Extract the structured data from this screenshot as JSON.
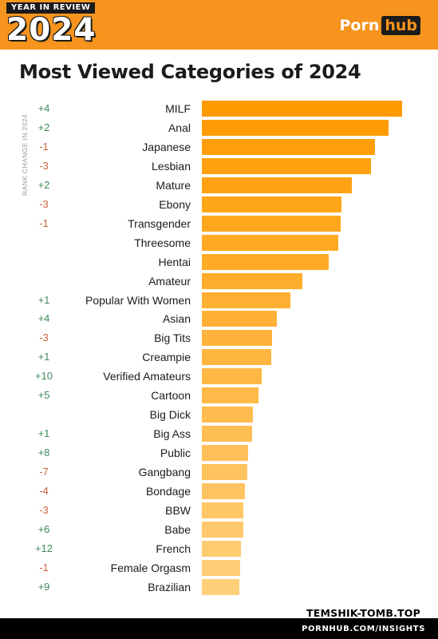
{
  "header": {
    "badge_top": "YEAR IN REVIEW",
    "badge_year": "2024",
    "logo_left": "Porn",
    "logo_right": "hub"
  },
  "footer": {
    "watermark": "TEMSHIK-TOMB.TOP",
    "url": "PORNHUB.COM/INSIGHTS"
  },
  "colors": {
    "brand_orange": "#f7941d",
    "bar_top": "#ff9a00",
    "bar_bottom": "#ffcf7a",
    "positive": "#3f8a5a",
    "negative": "#c9603b"
  },
  "chart_data": {
    "type": "bar",
    "orientation": "horizontal",
    "title": "Most Viewed Categories of 2024",
    "rank_change_label": "RANK CHANGE IN 2024",
    "categories": [
      "MILF",
      "Anal",
      "Japanese",
      "Lesbian",
      "Mature",
      "Ebony",
      "Transgender",
      "Threesome",
      "Hentai",
      "Amateur",
      "Popular With Women",
      "Asian",
      "Big Tits",
      "Creampie",
      "Verified Amateurs",
      "Cartoon",
      "Big Dick",
      "Big Ass",
      "Public",
      "Gangbang",
      "Bondage",
      "BBW",
      "Babe",
      "French",
      "Female Orgasm",
      "Brazilian"
    ],
    "rank_change": [
      "+4",
      "+2",
      "-1",
      "-3",
      "+2",
      "-3",
      "-1",
      "",
      "",
      "",
      "+1",
      "+4",
      "-3",
      "+1",
      "+10",
      "+5",
      "",
      "+1",
      "+8",
      "-7",
      "-4",
      "-3",
      "+6",
      "+12",
      "-1",
      "+9"
    ],
    "values": [
      100,
      93.3,
      86.5,
      84.6,
      75.0,
      69.7,
      69.2,
      68.3,
      63.5,
      50.0,
      44.2,
      37.5,
      35.1,
      34.6,
      29.8,
      28.4,
      25.5,
      25.0,
      23.1,
      22.6,
      21.6,
      20.7,
      20.7,
      19.7,
      19.2,
      18.8
    ],
    "value_scale": "relative to MILF = 100 (no axis printed)"
  }
}
